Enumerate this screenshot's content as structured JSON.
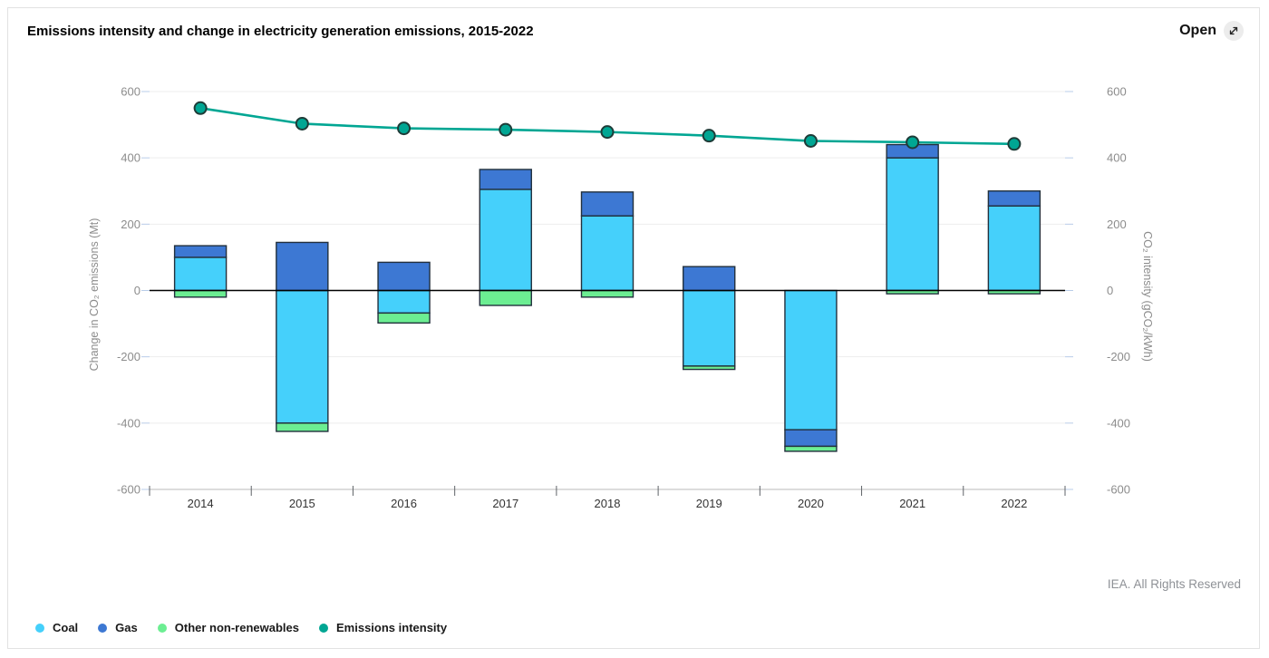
{
  "header": {
    "title": "Emissions intensity and change in electricity generation emissions, 2015-2022",
    "open_label": "Open"
  },
  "footer": {
    "credit": "IEA. All Rights Reserved"
  },
  "colors": {
    "coal": "#45d0fb",
    "gas": "#3d78d3",
    "other": "#6cee92",
    "intensity": "#00a693",
    "bar_border": "#22303d",
    "marker_border": "#1e3c38",
    "grid": "#ededed",
    "zero_line": "#000000",
    "axis_line": "#c7c7c7",
    "x_tick": "#5f6368",
    "y_tick": "#b9cce8",
    "tick_label": "#8c8c8c",
    "x_label": "#333333",
    "credit_color": "#8e9196"
  },
  "chart_data": {
    "type": "bar+line (stacked bars, dual y-axis)",
    "title": "Emissions intensity and change in electricity generation emissions, 2015-2022",
    "categories": [
      "2014",
      "2015",
      "2016",
      "2017",
      "2018",
      "2019",
      "2020",
      "2021",
      "2022"
    ],
    "bar_series": [
      {
        "name": "Coal",
        "values": [
          100,
          -400,
          -68,
          305,
          225,
          -228,
          -420,
          400,
          255
        ]
      },
      {
        "name": "Gas",
        "values": [
          35,
          145,
          85,
          60,
          72,
          72,
          -50,
          40,
          45
        ]
      },
      {
        "name": "Other non-renewables",
        "values": [
          -20,
          -25,
          -30,
          -45,
          -20,
          -10,
          -15,
          -10,
          -10
        ]
      }
    ],
    "line_series": {
      "name": "Emissions intensity",
      "values": [
        550,
        503,
        489,
        485,
        478,
        467,
        451,
        447,
        442
      ]
    },
    "ylabel_left": "Change in CO₂ emissions (Mt)",
    "ylabel_right": "CO₂ intensity (gCO₂/kWh)",
    "ylim": [
      -600,
      600
    ],
    "yticks": [
      600,
      400,
      200,
      0,
      -200,
      -400,
      -600
    ],
    "grid": true,
    "stacked": true,
    "legend_position": "bottom-left"
  },
  "legend": [
    {
      "label": "Coal",
      "color_key": "coal"
    },
    {
      "label": "Gas",
      "color_key": "gas"
    },
    {
      "label": "Other non-renewables",
      "color_key": "other"
    },
    {
      "label": "Emissions intensity",
      "color_key": "intensity"
    }
  ]
}
